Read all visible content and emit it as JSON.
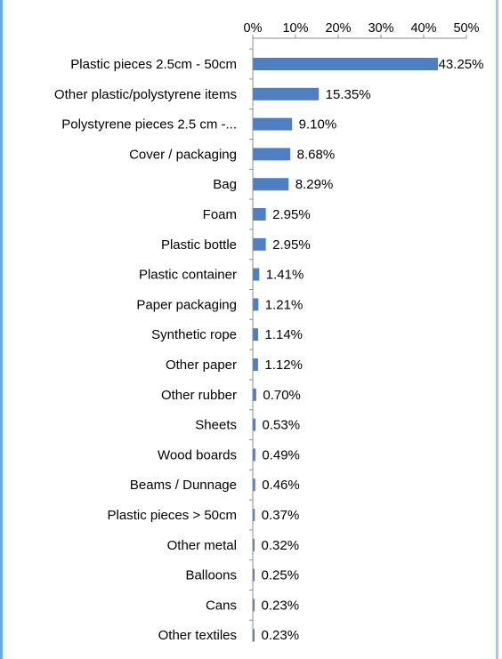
{
  "chart_data": {
    "type": "bar",
    "orientation": "horizontal",
    "title": "",
    "xlabel": "",
    "ylabel": "",
    "xlim": [
      0,
      50
    ],
    "x_ticks": [
      "0%",
      "10%",
      "20%",
      "30%",
      "40%",
      "50%"
    ],
    "x_tick_values": [
      0,
      10,
      20,
      30,
      40,
      50
    ],
    "axis_position": "top",
    "grid": false,
    "legend": "none",
    "bar_color": "#4f7fc2",
    "categories": [
      "Plastic pieces 2.5cm - 50cm",
      "Other plastic/polystyrene items",
      "Polystyrene pieces 2.5 cm -...",
      "Cover / packaging",
      "Bag",
      "Foam",
      "Plastic bottle",
      "Plastic container",
      "Paper packaging",
      "Synthetic rope",
      "Other paper",
      "Other rubber",
      "Sheets",
      "Wood boards",
      "Beams / Dunnage",
      "Plastic pieces > 50cm",
      "Other metal",
      "Balloons",
      "Cans",
      "Other textiles"
    ],
    "values": [
      43.25,
      15.35,
      9.1,
      8.68,
      8.29,
      2.95,
      2.95,
      1.41,
      1.21,
      1.14,
      1.12,
      0.7,
      0.53,
      0.49,
      0.46,
      0.37,
      0.32,
      0.25,
      0.23,
      0.23
    ],
    "data_labels": [
      "43.25%",
      "15.35%",
      "9.10%",
      "8.68%",
      "8.29%",
      "2.95%",
      "2.95%",
      "1.41%",
      "1.21%",
      "1.14%",
      "1.12%",
      "0.70%",
      "0.53%",
      "0.49%",
      "0.46%",
      "0.37%",
      "0.32%",
      "0.25%",
      "0.23%",
      "0.23%"
    ]
  }
}
